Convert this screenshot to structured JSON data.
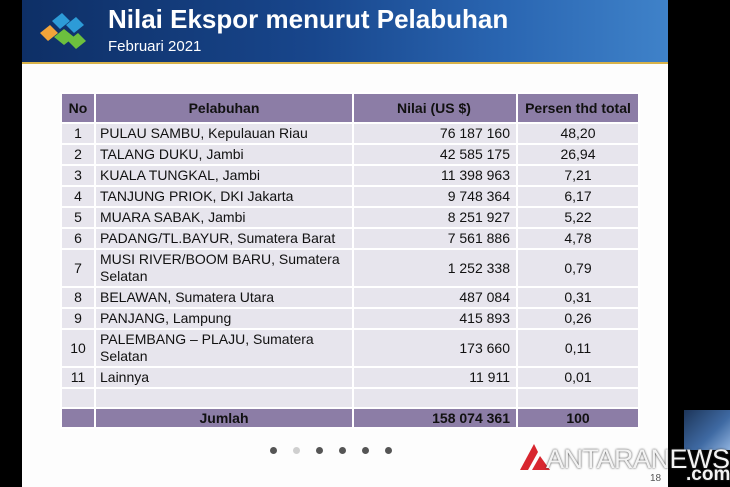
{
  "header": {
    "title": "Nilai Ekspor menurut Pelabuhan",
    "subtitle": "Februari 2021"
  },
  "table": {
    "headers": [
      "No",
      "Pelabuhan",
      "Nilai (US $)",
      "Persen thd total"
    ],
    "rows": [
      {
        "no": "1",
        "port": "PULAU SAMBU, Kepulauan Riau",
        "value": "76 187 160",
        "pct": "48,20"
      },
      {
        "no": "2",
        "port": "TALANG DUKU, Jambi",
        "value": "42 585 175",
        "pct": "26,94"
      },
      {
        "no": "3",
        "port": "KUALA TUNGKAL, Jambi",
        "value": "11 398 963",
        "pct": "7,21"
      },
      {
        "no": "4",
        "port": "TANJUNG PRIOK, DKI Jakarta",
        "value": "9 748 364",
        "pct": "6,17"
      },
      {
        "no": "5",
        "port": "MUARA SABAK, Jambi",
        "value": "8 251 927",
        "pct": "5,22"
      },
      {
        "no": "6",
        "port": "PADANG/TL.BAYUR, Sumatera Barat",
        "value": "7 561 886",
        "pct": "4,78"
      },
      {
        "no": "7",
        "port": "MUSI RIVER/BOOM BARU, Sumatera Selatan",
        "value": "1 252 338",
        "pct": "0,79"
      },
      {
        "no": "8",
        "port": "BELAWAN, Sumatera Utara",
        "value": "487 084",
        "pct": "0,31"
      },
      {
        "no": "9",
        "port": "PANJANG, Lampung",
        "value": "415 893",
        "pct": "0,26"
      },
      {
        "no": "10",
        "port": "PALEMBANG – PLAJU, Sumatera Selatan",
        "value": "173 660",
        "pct": "0,11"
      },
      {
        "no": "11",
        "port": "Lainnya",
        "value": "11 911",
        "pct": "0,01"
      }
    ],
    "total": {
      "label": "Jumlah",
      "value": "158 074 361",
      "pct": "100"
    }
  },
  "slide": {
    "page_number": "18",
    "active_dot": 1
  },
  "watermark": {
    "brand": "ANTARANEWS",
    "suffix": ".com"
  },
  "colors": {
    "header_dark": "#0e2f66",
    "header_light": "#3f82c9",
    "table_header": "#8c7da6",
    "table_row": "#e7e5ed",
    "brand_red": "#d8262f"
  }
}
